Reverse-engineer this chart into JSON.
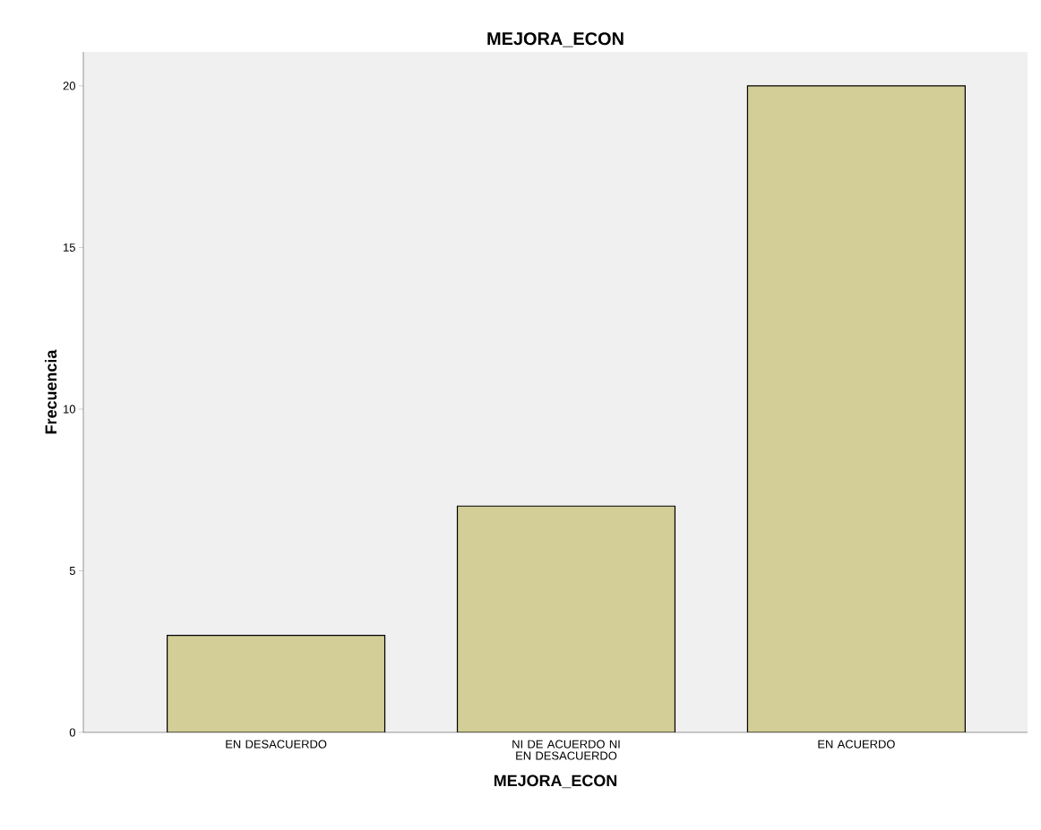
{
  "chart_data": {
    "type": "bar",
    "title": "MEJORA_ECON",
    "xlabel": "MEJORA_ECON",
    "ylabel": "Frecuencia",
    "categories": [
      "EN DESACUERDO",
      "NI DE ACUERDO NI EN DESACUERDO",
      "EN ACUERDO"
    ],
    "values": [
      3,
      7,
      20
    ],
    "color": "#d3ce97",
    "ylim": [
      0,
      21.05
    ],
    "yticks": [
      0,
      5,
      10,
      15,
      20
    ],
    "grid": false
  }
}
